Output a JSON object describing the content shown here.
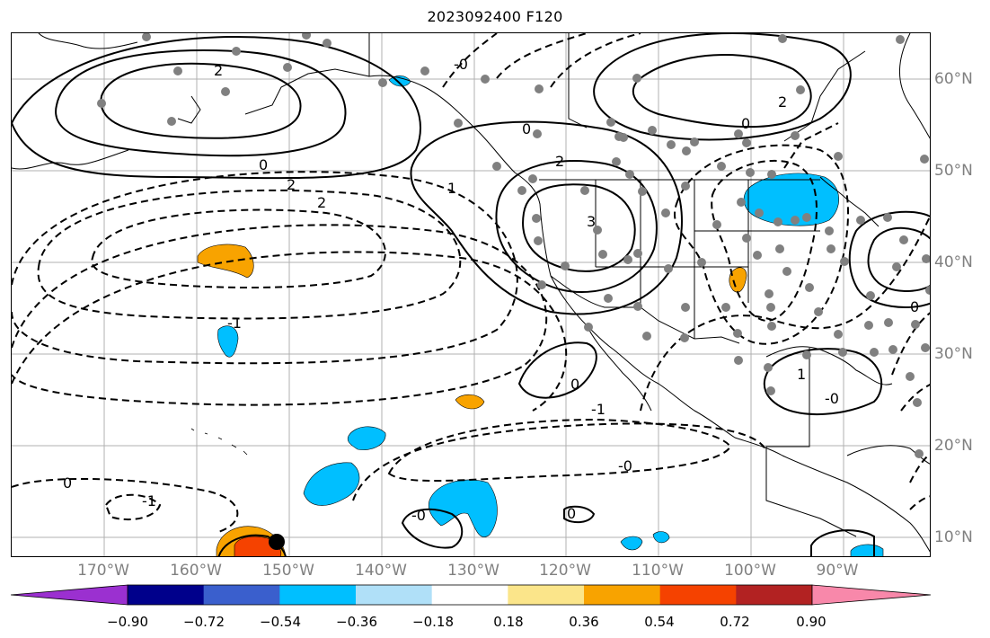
{
  "title": "2023092400 F120",
  "map": {
    "lon_labels": [
      "170°W",
      "160°W",
      "150°W",
      "140°W",
      "130°W",
      "120°W",
      "110°W",
      "100°W",
      "90°W"
    ],
    "lat_labels": [
      "60°N",
      "50°N",
      "40°N",
      "30°N",
      "20°N",
      "10°N"
    ],
    "contour_labels": {
      "c1": "2",
      "c2": "0",
      "c3": "-0",
      "c4": "2",
      "c5": "2",
      "c6": "0",
      "c7": "1",
      "c8": "2",
      "c9": "3",
      "c10": "0",
      "c11": "2",
      "c12": "-1",
      "c13": "0",
      "c14": "1",
      "c15": "-0",
      "c16": "-1",
      "c17": "-0",
      "c18": "0",
      "c19": "-0",
      "c20": "0",
      "c21": "-1",
      "c22": "0"
    },
    "station_color": "#808080",
    "marker_color": "#000000"
  },
  "colorbar": {
    "ticks": [
      "−0.90",
      "−0.72",
      "−0.54",
      "−0.36",
      "−0.18",
      "0.18",
      "0.36",
      "0.54",
      "0.72",
      "0.90"
    ],
    "colors": [
      "#9b30d0",
      "#00008b",
      "#3a5fcd",
      "#00bfff",
      "#b0e0f8",
      "#ffffff",
      "#fbe58a",
      "#f8a300",
      "#f54200",
      "#b22222",
      "#f888aa"
    ]
  }
}
